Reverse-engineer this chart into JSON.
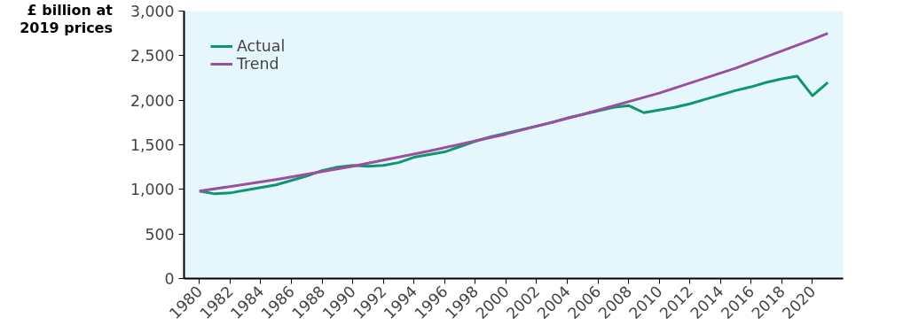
{
  "chart_data": {
    "type": "line",
    "ylabel": "£ billion at 2019 prices",
    "xlim": [
      1979,
      2022
    ],
    "xticks": [
      1980,
      1982,
      1984,
      1986,
      1988,
      1990,
      1992,
      1994,
      1996,
      1998,
      2000,
      2002,
      2004,
      2006,
      2008,
      2010,
      2012,
      2014,
      2016,
      2018,
      2020
    ],
    "ylim": [
      0,
      3000
    ],
    "yticks": [
      {
        "value": 0,
        "label": "0"
      },
      {
        "value": 500,
        "label": "500"
      },
      {
        "value": 1000,
        "label": "1,000"
      },
      {
        "value": 1500,
        "label": "1,500"
      },
      {
        "value": 2000,
        "label": "2,000"
      },
      {
        "value": 2500,
        "label": "2,500"
      },
      {
        "value": 3000,
        "label": "3,000"
      }
    ],
    "grid": false,
    "legend": "top left",
    "marker": "none",
    "line_style": "solid",
    "series": [
      {
        "name": "Actual",
        "color": "#10966c",
        "x": [
          1980,
          1981,
          1982,
          1983,
          1984,
          1985,
          1986,
          1987,
          1988,
          1989,
          1990,
          1991,
          1992,
          1993,
          1994,
          1995,
          1996,
          1997,
          1998,
          1999,
          2000,
          2001,
          2002,
          2003,
          2004,
          2005,
          2006,
          2007,
          2008,
          2009,
          2010,
          2011,
          2012,
          2013,
          2014,
          2015,
          2016,
          2017,
          2018,
          2019,
          2020,
          2021
        ],
        "values": [
          980,
          950,
          960,
          990,
          1020,
          1050,
          1100,
          1150,
          1210,
          1250,
          1270,
          1260,
          1270,
          1300,
          1360,
          1390,
          1420,
          1480,
          1540,
          1590,
          1630,
          1670,
          1710,
          1750,
          1800,
          1840,
          1880,
          1920,
          1940,
          1860,
          1890,
          1920,
          1960,
          2010,
          2060,
          2110,
          2150,
          2200,
          2240,
          2270,
          2050,
          2200
        ]
      },
      {
        "name": "Trend",
        "color": "#9b4f9f",
        "x": [
          1980,
          1985,
          1990,
          1995,
          2000,
          2005,
          2010,
          2015,
          2020,
          2021
        ],
        "values": [
          980,
          1110,
          1260,
          1430,
          1620,
          1840,
          2080,
          2360,
          2680,
          2750
        ]
      }
    ]
  }
}
